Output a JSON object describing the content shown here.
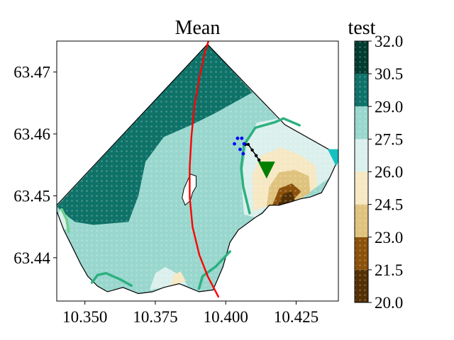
{
  "chart_data": {
    "type": "heatmap",
    "title": "Mean",
    "xlabel": "",
    "ylabel": "",
    "xlim": [
      10.34,
      10.44
    ],
    "ylim": [
      63.433,
      63.475
    ],
    "x_ticks": [
      "10.350",
      "10.375",
      "10.400",
      "10.425"
    ],
    "x_tick_values": [
      10.35,
      10.375,
      10.4,
      10.425
    ],
    "y_ticks": [
      "63.44",
      "63.45",
      "63.46",
      "63.47"
    ],
    "y_tick_values": [
      63.44,
      63.45,
      63.46,
      63.47
    ],
    "colorbar": {
      "title": "test",
      "tick_labels": [
        "20.0",
        "21.5",
        "23.0",
        "24.5",
        "26.0",
        "27.5",
        "29.0",
        "30.5",
        "32.0"
      ],
      "levels": [
        20.0,
        21.5,
        23.0,
        24.5,
        26.0,
        27.5,
        29.0,
        30.5,
        32.0
      ],
      "colors": [
        "#543005",
        "#8c510a",
        "#dfc27d",
        "#f6e8c3",
        "#dbf0ed",
        "#99d7ce",
        "#0e7268",
        "#003c30"
      ]
    },
    "boundary_polygon": [
      [
        10.34,
        63.4485
      ],
      [
        10.3935,
        63.4745
      ],
      [
        10.421,
        63.4615
      ],
      [
        10.4405,
        63.4565
      ],
      [
        10.437,
        63.453
      ],
      [
        10.434,
        63.4505
      ],
      [
        10.43,
        63.4498
      ],
      [
        10.4265,
        63.4495
      ],
      [
        10.423,
        63.449
      ],
      [
        10.419,
        63.4485
      ],
      [
        10.4155,
        63.4485
      ],
      [
        10.413,
        63.4472
      ],
      [
        10.4105,
        63.4465
      ],
      [
        10.4075,
        63.4455
      ],
      [
        10.4045,
        63.4445
      ],
      [
        10.4015,
        63.4425
      ],
      [
        10.399,
        63.4385
      ],
      [
        10.3955,
        63.4348
      ],
      [
        10.3905,
        63.4345
      ],
      [
        10.3835,
        63.4358
      ],
      [
        10.378,
        63.4352
      ],
      [
        10.374,
        63.4345
      ],
      [
        10.369,
        63.4342
      ],
      [
        10.3635,
        63.4352
      ],
      [
        10.358,
        63.4345
      ],
      [
        10.3545,
        63.4354
      ],
      [
        10.351,
        63.437
      ],
      [
        10.3485,
        63.439
      ],
      [
        10.3458,
        63.4415
      ],
      [
        10.3425,
        63.4445
      ],
      [
        10.34,
        63.4475
      ]
    ],
    "regions": [
      {
        "level_range": [
          29.0,
          30.5
        ],
        "polygon": [
          [
            10.34,
            63.4483
          ],
          [
            10.3935,
            63.4745
          ],
          [
            10.4095,
            63.4667
          ],
          [
            10.396,
            63.4633
          ],
          [
            10.388,
            63.4615
          ],
          [
            10.378,
            63.4595
          ],
          [
            10.3715,
            63.4555
          ],
          [
            10.369,
            63.45
          ],
          [
            10.3655,
            63.4458
          ],
          [
            10.353,
            63.4453
          ],
          [
            10.3465,
            63.4458
          ],
          [
            10.343,
            63.447
          ],
          [
            10.34,
            63.4483
          ]
        ]
      },
      {
        "level_range": [
          26.0,
          27.5
        ],
        "polygon": [
          [
            10.4095,
            63.4667
          ],
          [
            10.421,
            63.4615
          ],
          [
            10.4405,
            63.4565
          ],
          [
            10.437,
            63.453
          ],
          [
            10.4265,
            63.4495
          ],
          [
            10.4155,
            63.4485
          ],
          [
            10.4105,
            63.4465
          ],
          [
            10.4065,
            63.447
          ],
          [
            10.4055,
            63.4525
          ],
          [
            10.4075,
            63.4585
          ],
          [
            10.411,
            63.4618
          ],
          [
            10.4185,
            63.4625
          ],
          [
            10.4095,
            63.4667
          ]
        ]
      },
      {
        "level_range": [
          24.5,
          26.0
        ],
        "polygon": [
          [
            10.4098,
            63.4475
          ],
          [
            10.4095,
            63.4535
          ],
          [
            10.4125,
            63.4565
          ],
          [
            10.4195,
            63.4578
          ],
          [
            10.4265,
            63.4566
          ],
          [
            10.432,
            63.4548
          ],
          [
            10.4325,
            63.4515
          ],
          [
            10.4265,
            63.4495
          ],
          [
            10.4155,
            63.4485
          ],
          [
            10.4098,
            63.4475
          ]
        ]
      },
      {
        "level_range": [
          23.0,
          24.5
        ],
        "polygon": [
          [
            10.4145,
            63.4482
          ],
          [
            10.4155,
            63.4515
          ],
          [
            10.419,
            63.4538
          ],
          [
            10.4245,
            63.4542
          ],
          [
            10.4295,
            63.4532
          ],
          [
            10.43,
            63.4505
          ],
          [
            10.4265,
            63.4495
          ],
          [
            10.419,
            63.4487
          ],
          [
            10.4145,
            63.4482
          ]
        ]
      },
      {
        "level_range": [
          21.5,
          23.0
        ],
        "polygon": [
          [
            10.4165,
            63.4484
          ],
          [
            10.419,
            63.4512
          ],
          [
            10.4235,
            63.452
          ],
          [
            10.4268,
            63.4507
          ],
          [
            10.4235,
            63.4491
          ],
          [
            10.419,
            63.4487
          ],
          [
            10.4165,
            63.4484
          ]
        ]
      },
      {
        "level_range": [
          20.0,
          21.5
        ],
        "polygon": [
          [
            10.4185,
            63.4485
          ],
          [
            10.4205,
            63.4503
          ],
          [
            10.4235,
            63.4507
          ],
          [
            10.4245,
            63.4493
          ],
          [
            10.422,
            63.4488
          ],
          [
            10.4185,
            63.4485
          ]
        ]
      },
      {
        "level_range": [
          26.0,
          27.5
        ],
        "polygon": [
          [
            10.373,
            63.4348
          ],
          [
            10.375,
            63.4375
          ],
          [
            10.3785,
            63.4385
          ],
          [
            10.3825,
            63.4375
          ],
          [
            10.3865,
            63.4356
          ],
          [
            10.3835,
            63.4358
          ],
          [
            10.378,
            63.4352
          ],
          [
            10.373,
            63.4348
          ]
        ]
      },
      {
        "level_range": [
          24.5,
          26.0
        ],
        "polygon": [
          [
            10.3805,
            63.4355
          ],
          [
            10.3815,
            63.4372
          ],
          [
            10.384,
            63.4378
          ],
          [
            10.3858,
            63.4362
          ],
          [
            10.3835,
            63.4358
          ],
          [
            10.3805,
            63.4355
          ]
        ]
      },
      {
        "level_range": [
          26.0,
          27.5
        ],
        "polygon": [
          [
            10.3415,
            63.448
          ],
          [
            10.3435,
            63.4468
          ],
          [
            10.3442,
            63.4448
          ],
          [
            10.3425,
            63.4445
          ],
          [
            10.3405,
            63.447
          ]
        ]
      }
    ],
    "island_polygon": [
      [
        10.3865,
        63.4525
      ],
      [
        10.3875,
        63.4535
      ],
      [
        10.3895,
        63.4532
      ],
      [
        10.3895,
        63.4515
      ],
      [
        10.3882,
        63.4505
      ],
      [
        10.3874,
        63.4492
      ],
      [
        10.3856,
        63.4485
      ],
      [
        10.3845,
        63.4497
      ],
      [
        10.3852,
        63.4512
      ],
      [
        10.3865,
        63.4525
      ]
    ],
    "contour_lines": [
      {
        "color": "#2db07f",
        "points": [
          [
            10.4085,
            63.4472
          ],
          [
            10.4062,
            63.4515
          ],
          [
            10.4055,
            63.4545
          ],
          [
            10.4065,
            63.4582
          ],
          [
            10.4105,
            63.461
          ],
          [
            10.4175,
            63.4619
          ],
          [
            10.4205,
            63.4625
          ],
          [
            10.4262,
            63.4614
          ]
        ]
      },
      {
        "color": "#2db07f",
        "points": [
          [
            10.3905,
            63.435
          ],
          [
            10.3918,
            63.437
          ],
          [
            10.3965,
            63.4386
          ],
          [
            10.4015,
            63.441
          ]
        ]
      },
      {
        "color": "#2db07f",
        "points": [
          [
            10.3525,
            63.436
          ],
          [
            10.3545,
            63.4372
          ],
          [
            10.3575,
            63.4375
          ],
          [
            10.3625,
            63.4365
          ],
          [
            10.3665,
            63.4355
          ]
        ]
      },
      {
        "color": "#6fcf8b",
        "points": [
          [
            10.3418,
            63.4478
          ],
          [
            10.3435,
            63.4462
          ],
          [
            10.3442,
            63.4442
          ]
        ]
      }
    ],
    "mean_line": {
      "color": "#ff0000",
      "points": [
        [
          10.394,
          63.4752
        ],
        [
          10.3925,
          63.473
        ],
        [
          10.3907,
          63.4692
        ],
        [
          10.3889,
          63.4645
        ],
        [
          10.3878,
          63.4595
        ],
        [
          10.3872,
          63.4545
        ],
        [
          10.3872,
          63.4498
        ],
        [
          10.3882,
          63.445
        ],
        [
          10.3906,
          63.4405
        ],
        [
          10.3936,
          63.437
        ],
        [
          10.3975,
          63.4336
        ]
      ]
    },
    "black_track": [
      [
        10.407,
        63.4583
      ],
      [
        10.408,
        63.4583
      ],
      [
        10.4094,
        63.4574
      ],
      [
        10.4108,
        63.4565
      ],
      [
        10.4118,
        63.4558
      ],
      [
        10.4128,
        63.4551
      ],
      [
        10.4136,
        63.4544
      ],
      [
        10.4142,
        63.4538
      ]
    ],
    "blue_points": [
      [
        10.4031,
        63.4584
      ],
      [
        10.4042,
        63.4593
      ],
      [
        10.4057,
        63.4593
      ],
      [
        10.4065,
        63.4584
      ],
      [
        10.4051,
        63.4575
      ],
      [
        10.4062,
        63.4568
      ]
    ],
    "markers": [
      {
        "shape": "triangle-down",
        "color": "#008000",
        "x": 10.4145,
        "y": 63.4543
      },
      {
        "shape": "triangle-down",
        "color": "#17bfbf",
        "x": 10.4392,
        "y": 63.4563
      }
    ]
  }
}
